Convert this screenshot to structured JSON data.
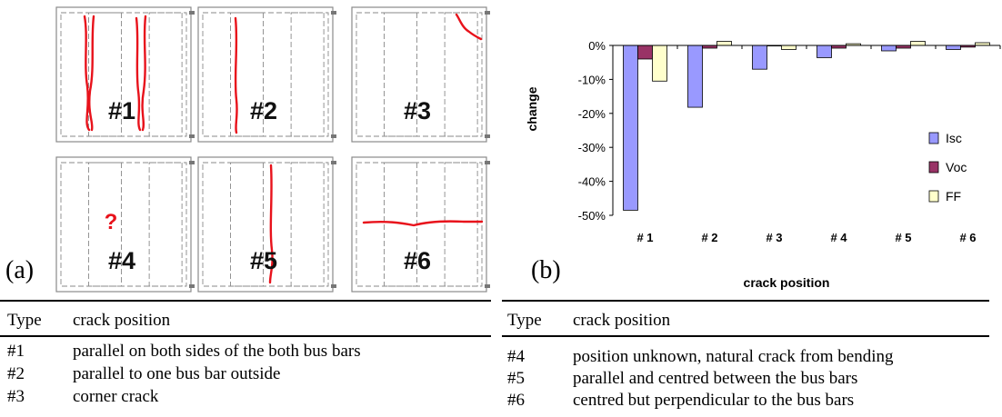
{
  "panel_a": {
    "label": "(a)",
    "cells": [
      {
        "id": "#1"
      },
      {
        "id": "#2"
      },
      {
        "id": "#3"
      },
      {
        "id": "#4",
        "marker": "?"
      },
      {
        "id": "#5"
      },
      {
        "id": "#6"
      }
    ],
    "crack_color": "#e8121b",
    "marker_color": "#e8121b"
  },
  "panel_b": {
    "label": "(b)"
  },
  "chart_data": {
    "type": "bar",
    "categories": [
      "# 1",
      "# 2",
      "# 3",
      "# 4",
      "# 5",
      "# 6"
    ],
    "series": [
      {
        "name": "Isc",
        "color": "#9999ff",
        "values": [
          -48.5,
          -18.2,
          -7.0,
          -3.6,
          -1.6,
          -1.2
        ]
      },
      {
        "name": "Voc",
        "color": "#993366",
        "values": [
          -4.0,
          -0.8,
          0.0,
          -0.8,
          -0.8,
          -0.5
        ]
      },
      {
        "name": "FF",
        "color": "#ffffcc",
        "values": [
          -10.5,
          1.2,
          -1.2,
          0.5,
          1.2,
          0.8
        ]
      }
    ],
    "xlabel": "crack position",
    "ylabel": "change",
    "ylim": [
      -50,
      0
    ],
    "yticks": [
      "0%",
      "-10%",
      "-20%",
      "-30%",
      "-40%",
      "-50%"
    ],
    "legend_position": "right",
    "grid": false
  },
  "table_left": {
    "header": {
      "type": "Type",
      "position": "crack position"
    },
    "rows": [
      {
        "type": "#1",
        "position": "parallel on both sides of the both bus bars"
      },
      {
        "type": "#2",
        "position": "parallel to one bus bar outside"
      },
      {
        "type": "#3",
        "position": "corner crack"
      }
    ]
  },
  "table_right": {
    "header": {
      "type": "Type",
      "position": "crack position"
    },
    "rows": [
      {
        "type": "#4",
        "position": "position unknown, natural crack from bending"
      },
      {
        "type": "#5",
        "position": "parallel and centred between the bus bars"
      },
      {
        "type": "#6",
        "position": "centred but perpendicular to the bus bars"
      }
    ]
  }
}
